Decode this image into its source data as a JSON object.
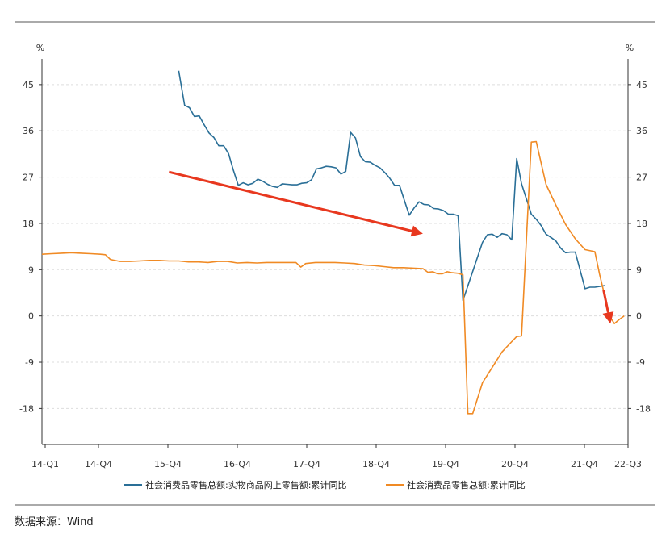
{
  "chart_data": {
    "type": "line",
    "title": "",
    "ylabel_left": "%",
    "ylabel_right": "%",
    "ylim": [
      -25,
      50
    ],
    "yticks": [
      -18,
      -9,
      0,
      9,
      18,
      27,
      36,
      45
    ],
    "x_tick_labels": [
      "14-Q1",
      "14-Q4",
      "15-Q4",
      "16-Q4",
      "17-Q4",
      "18-Q4",
      "19-Q4",
      "20-Q4",
      "21-Q4",
      "22-Q3"
    ],
    "grid": true,
    "legend_position": "bottom",
    "series": [
      {
        "name": "社会消费品零售总额:实物商品网上零售额:累计同比",
        "color": "#2a6f97",
        "points": [
          [
            14.0,
            47.7
          ],
          [
            14.6,
            41.0
          ],
          [
            15.1,
            40.5
          ],
          [
            15.6,
            38.8
          ],
          [
            16.1,
            38.9
          ],
          [
            16.6,
            37.2
          ],
          [
            17.1,
            35.6
          ],
          [
            17.6,
            34.7
          ],
          [
            18.1,
            33.1
          ],
          [
            18.6,
            33.1
          ],
          [
            19.1,
            31.6
          ],
          [
            19.6,
            28.3
          ],
          [
            20.1,
            25.4
          ],
          [
            20.6,
            25.9
          ],
          [
            21.1,
            25.5
          ],
          [
            21.6,
            25.8
          ],
          [
            22.1,
            26.6
          ],
          [
            22.6,
            26.2
          ],
          [
            23.1,
            25.6
          ],
          [
            23.6,
            25.2
          ],
          [
            24.1,
            25.0
          ],
          [
            24.6,
            25.7
          ],
          [
            25.1,
            25.6
          ],
          [
            25.6,
            25.5
          ],
          [
            26.1,
            25.5
          ],
          [
            26.6,
            25.8
          ],
          [
            27.1,
            25.9
          ],
          [
            27.6,
            26.5
          ],
          [
            28.1,
            28.6
          ],
          [
            28.6,
            28.8
          ],
          [
            29.1,
            29.1
          ],
          [
            29.6,
            29.0
          ],
          [
            30.1,
            28.8
          ],
          [
            30.6,
            27.6
          ],
          [
            31.1,
            28.1
          ],
          [
            31.6,
            35.7
          ],
          [
            32.1,
            34.6
          ],
          [
            32.6,
            31.0
          ],
          [
            33.1,
            30.0
          ],
          [
            33.6,
            29.9
          ],
          [
            34.1,
            29.3
          ],
          [
            34.6,
            28.8
          ],
          [
            35.1,
            27.9
          ],
          [
            35.6,
            26.8
          ],
          [
            36.1,
            25.4
          ],
          [
            36.6,
            25.4
          ],
          [
            37.1,
            22.5
          ],
          [
            37.6,
            19.6
          ],
          [
            38.1,
            21.0
          ],
          [
            38.6,
            22.2
          ],
          [
            39.1,
            21.7
          ],
          [
            39.6,
            21.6
          ],
          [
            40.1,
            20.9
          ],
          [
            40.6,
            20.8
          ],
          [
            41.1,
            20.5
          ],
          [
            41.6,
            19.8
          ],
          [
            42.1,
            19.8
          ],
          [
            42.6,
            19.5
          ],
          [
            43.1,
            3.0
          ],
          [
            45.1,
            14.3
          ],
          [
            45.6,
            15.8
          ],
          [
            46.1,
            15.9
          ],
          [
            46.6,
            15.3
          ],
          [
            47.1,
            16.0
          ],
          [
            47.6,
            15.8
          ],
          [
            48.1,
            14.8
          ],
          [
            48.6,
            30.6
          ],
          [
            49.1,
            25.7
          ],
          [
            50.1,
            19.8
          ],
          [
            50.6,
            18.8
          ],
          [
            51.1,
            17.6
          ],
          [
            51.6,
            15.9
          ],
          [
            52.1,
            15.3
          ],
          [
            52.6,
            14.6
          ],
          [
            53.1,
            13.2
          ],
          [
            53.6,
            12.3
          ],
          [
            54.1,
            12.4
          ],
          [
            54.6,
            12.4
          ],
          [
            55.6,
            5.3
          ],
          [
            56.1,
            5.6
          ],
          [
            56.6,
            5.6
          ],
          [
            57.6,
            5.9
          ]
        ]
      },
      {
        "name": "社会消费品零售总额:累计同比",
        "color": "#f08a24",
        "points": [
          [
            0.0,
            12.0
          ],
          [
            1.0,
            12.1
          ],
          [
            2.0,
            12.2
          ],
          [
            3.0,
            12.3
          ],
          [
            4.0,
            12.2
          ],
          [
            5.0,
            12.1
          ],
          [
            6.0,
            12.0
          ],
          [
            6.5,
            11.9
          ],
          [
            7.0,
            11.0
          ],
          [
            8.0,
            10.6
          ],
          [
            9.0,
            10.6
          ],
          [
            10.0,
            10.7
          ],
          [
            11.0,
            10.8
          ],
          [
            12.0,
            10.8
          ],
          [
            13.0,
            10.7
          ],
          [
            14.0,
            10.7
          ],
          [
            15.0,
            10.5
          ],
          [
            16.0,
            10.5
          ],
          [
            17.0,
            10.4
          ],
          [
            18.0,
            10.6
          ],
          [
            19.0,
            10.6
          ],
          [
            20.0,
            10.3
          ],
          [
            21.0,
            10.4
          ],
          [
            22.0,
            10.3
          ],
          [
            23.0,
            10.4
          ],
          [
            24.0,
            10.4
          ],
          [
            25.0,
            10.4
          ],
          [
            26.0,
            10.4
          ],
          [
            26.5,
            9.5
          ],
          [
            27.0,
            10.2
          ],
          [
            28.0,
            10.4
          ],
          [
            29.0,
            10.4
          ],
          [
            30.0,
            10.4
          ],
          [
            31.0,
            10.3
          ],
          [
            32.0,
            10.2
          ],
          [
            33.0,
            9.9
          ],
          [
            34.0,
            9.8
          ],
          [
            35.0,
            9.6
          ],
          [
            36.0,
            9.4
          ],
          [
            37.0,
            9.4
          ],
          [
            38.0,
            9.3
          ],
          [
            39.0,
            9.2
          ],
          [
            39.5,
            8.5
          ],
          [
            40.0,
            8.6
          ],
          [
            40.5,
            8.2
          ],
          [
            41.0,
            8.2
          ],
          [
            41.5,
            8.6
          ],
          [
            42.0,
            8.4
          ],
          [
            42.6,
            8.3
          ],
          [
            43.1,
            8.0
          ],
          [
            43.6,
            -19.0
          ],
          [
            44.1,
            -19.0
          ],
          [
            45.1,
            -13.0
          ],
          [
            46.1,
            -10.0
          ],
          [
            47.1,
            -7.0
          ],
          [
            48.1,
            -5.0
          ],
          [
            48.6,
            -4.0
          ],
          [
            49.1,
            -3.9
          ],
          [
            50.1,
            33.8
          ],
          [
            50.6,
            33.9
          ],
          [
            51.6,
            25.6
          ],
          [
            52.6,
            21.6
          ],
          [
            53.6,
            17.8
          ],
          [
            54.6,
            15.0
          ],
          [
            55.6,
            12.9
          ],
          [
            56.6,
            12.5
          ],
          [
            57.1,
            8.0
          ],
          [
            57.6,
            4.0
          ],
          [
            58.1,
            0.0
          ],
          [
            58.6,
            -1.5
          ],
          [
            59.1,
            -0.7
          ],
          [
            59.6,
            0.0
          ]
        ]
      }
    ],
    "annotations": [
      {
        "type": "arrow",
        "color": "#e8381f",
        "from": [
          13.0,
          28.0
        ],
        "to": [
          39.0,
          16.0
        ]
      },
      {
        "type": "arrow",
        "color": "#e8381f",
        "from": [
          57.5,
          5.0
        ],
        "to": [
          58.2,
          -1.5
        ]
      }
    ]
  },
  "source_note": "数据来源：Wind"
}
